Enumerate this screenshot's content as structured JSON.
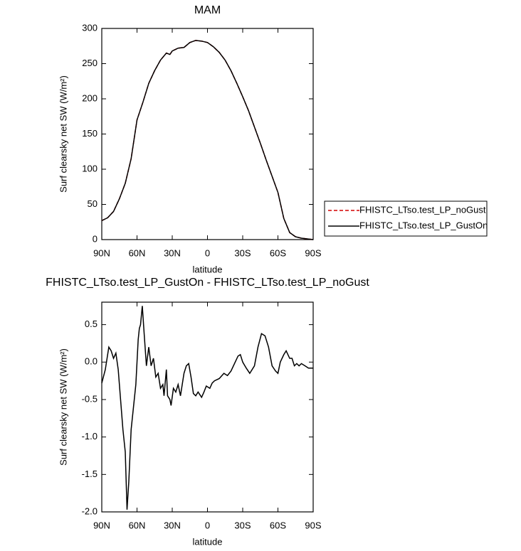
{
  "chart_data": [
    {
      "type": "line",
      "title": "MAM",
      "xlabel": "latitude",
      "ylabel": "Surf clearsky net SW (W/m²)",
      "x": [
        90,
        85,
        80,
        75,
        70,
        65,
        60,
        55,
        50,
        45,
        40,
        35,
        32,
        30,
        25,
        20,
        15,
        10,
        5,
        0,
        -5,
        -10,
        -15,
        -20,
        -25,
        -30,
        -35,
        -40,
        -45,
        -50,
        -55,
        -60,
        -65,
        -70,
        -75,
        -80,
        -85,
        -90
      ],
      "series": [
        {
          "name": "FHISTC_LTso.test_LP_noGust",
          "color": "#d40000",
          "linestyle": "dashed",
          "values": [
            27,
            31,
            40,
            58,
            80,
            115,
            170,
            195,
            222,
            240,
            255,
            265,
            263,
            268,
            272,
            273,
            280,
            283,
            282,
            280,
            274,
            266,
            255,
            240,
            222,
            203,
            183,
            160,
            137,
            113,
            90,
            67,
            30,
            10,
            4,
            2,
            1,
            0
          ]
        },
        {
          "name": "FHISTC_LTso.test_LP_GustOn",
          "color": "#000000",
          "linestyle": "solid",
          "values": [
            27,
            31,
            40,
            58,
            80,
            115,
            170,
            195,
            222,
            240,
            255,
            265,
            263,
            268,
            272,
            273,
            280,
            283,
            282,
            280,
            274,
            266,
            255,
            240,
            222,
            203,
            183,
            160,
            137,
            113,
            90,
            67,
            30,
            10,
            4,
            2,
            1,
            0
          ]
        }
      ],
      "xlim": [
        90,
        -90
      ],
      "xticks": [
        {
          "value": 90,
          "label": "90N"
        },
        {
          "value": 60,
          "label": "60N"
        },
        {
          "value": 30,
          "label": "30N"
        },
        0,
        {
          "value": -30,
          "label": "30S"
        },
        {
          "value": -60,
          "label": "60S"
        },
        {
          "value": -90,
          "label": "90S"
        }
      ],
      "ylim": [
        0,
        300
      ],
      "yticks": [
        0,
        50,
        100,
        150,
        200,
        250,
        300
      ],
      "legend": "right"
    },
    {
      "type": "line",
      "title": "FHISTC_LTso.test_LP_GustOn - FHISTC_LTso.test_LP_noGust",
      "xlabel": "latitude",
      "ylabel": "Surf clearsky net SW (W/m²)",
      "x": [
        90,
        87,
        84,
        82,
        80,
        78,
        76,
        74,
        72,
        70,
        68.5,
        67,
        65,
        63,
        61,
        59,
        58,
        57,
        55.5,
        54,
        52,
        50,
        48,
        46,
        44,
        42,
        40,
        38,
        37,
        35,
        34,
        32,
        31,
        29,
        27,
        25,
        23,
        20,
        18,
        16,
        14,
        12,
        10,
        8,
        5,
        3,
        1,
        -2,
        -4,
        -6,
        -10,
        -14,
        -17,
        -20,
        -23,
        -26,
        -28,
        -30,
        -33,
        -36,
        -40,
        -43,
        -46,
        -49,
        -52,
        -55,
        -58,
        -60,
        -62,
        -65,
        -67,
        -70,
        -72,
        -74,
        -76,
        -78,
        -80,
        -83,
        -86,
        -90
      ],
      "series": [
        {
          "color": "#000000",
          "linestyle": "solid",
          "values": [
            -0.28,
            -0.1,
            0.2,
            0.15,
            0.05,
            0.12,
            -0.1,
            -0.5,
            -0.9,
            -1.2,
            -1.97,
            -1.6,
            -0.9,
            -0.6,
            -0.3,
            0.3,
            0.45,
            0.5,
            0.75,
            0.4,
            -0.05,
            0.2,
            -0.05,
            0.05,
            -0.2,
            -0.15,
            -0.35,
            -0.3,
            -0.45,
            -0.1,
            -0.45,
            -0.5,
            -0.58,
            -0.35,
            -0.4,
            -0.3,
            -0.45,
            -0.15,
            -0.05,
            -0.02,
            -0.2,
            -0.42,
            -0.45,
            -0.4,
            -0.47,
            -0.4,
            -0.32,
            -0.35,
            -0.28,
            -0.25,
            -0.22,
            -0.15,
            -0.18,
            -0.12,
            -0.02,
            0.08,
            0.1,
            0.0,
            -0.08,
            -0.15,
            -0.05,
            0.2,
            0.38,
            0.35,
            0.2,
            -0.05,
            -0.12,
            -0.15,
            0.0,
            0.1,
            0.15,
            0.05,
            0.05,
            -0.05,
            -0.02,
            -0.05,
            -0.02,
            -0.05,
            -0.08,
            -0.08
          ]
        }
      ],
      "xlim": [
        90,
        -90
      ],
      "xticks": [
        {
          "value": 90,
          "label": "90N"
        },
        {
          "value": 60,
          "label": "60N"
        },
        {
          "value": 30,
          "label": "30N"
        },
        0,
        {
          "value": -30,
          "label": "30S"
        },
        {
          "value": -60,
          "label": "60S"
        },
        {
          "value": -90,
          "label": "90S"
        }
      ],
      "ylim": [
        -2,
        0.8
      ],
      "yticks": [
        {
          "value": -2,
          "label": "-2.0"
        },
        -1.5,
        {
          "value": -1,
          "label": "-1.0"
        },
        -0.5,
        {
          "value": 0,
          "label": "0.0"
        },
        0.5
      ]
    }
  ]
}
